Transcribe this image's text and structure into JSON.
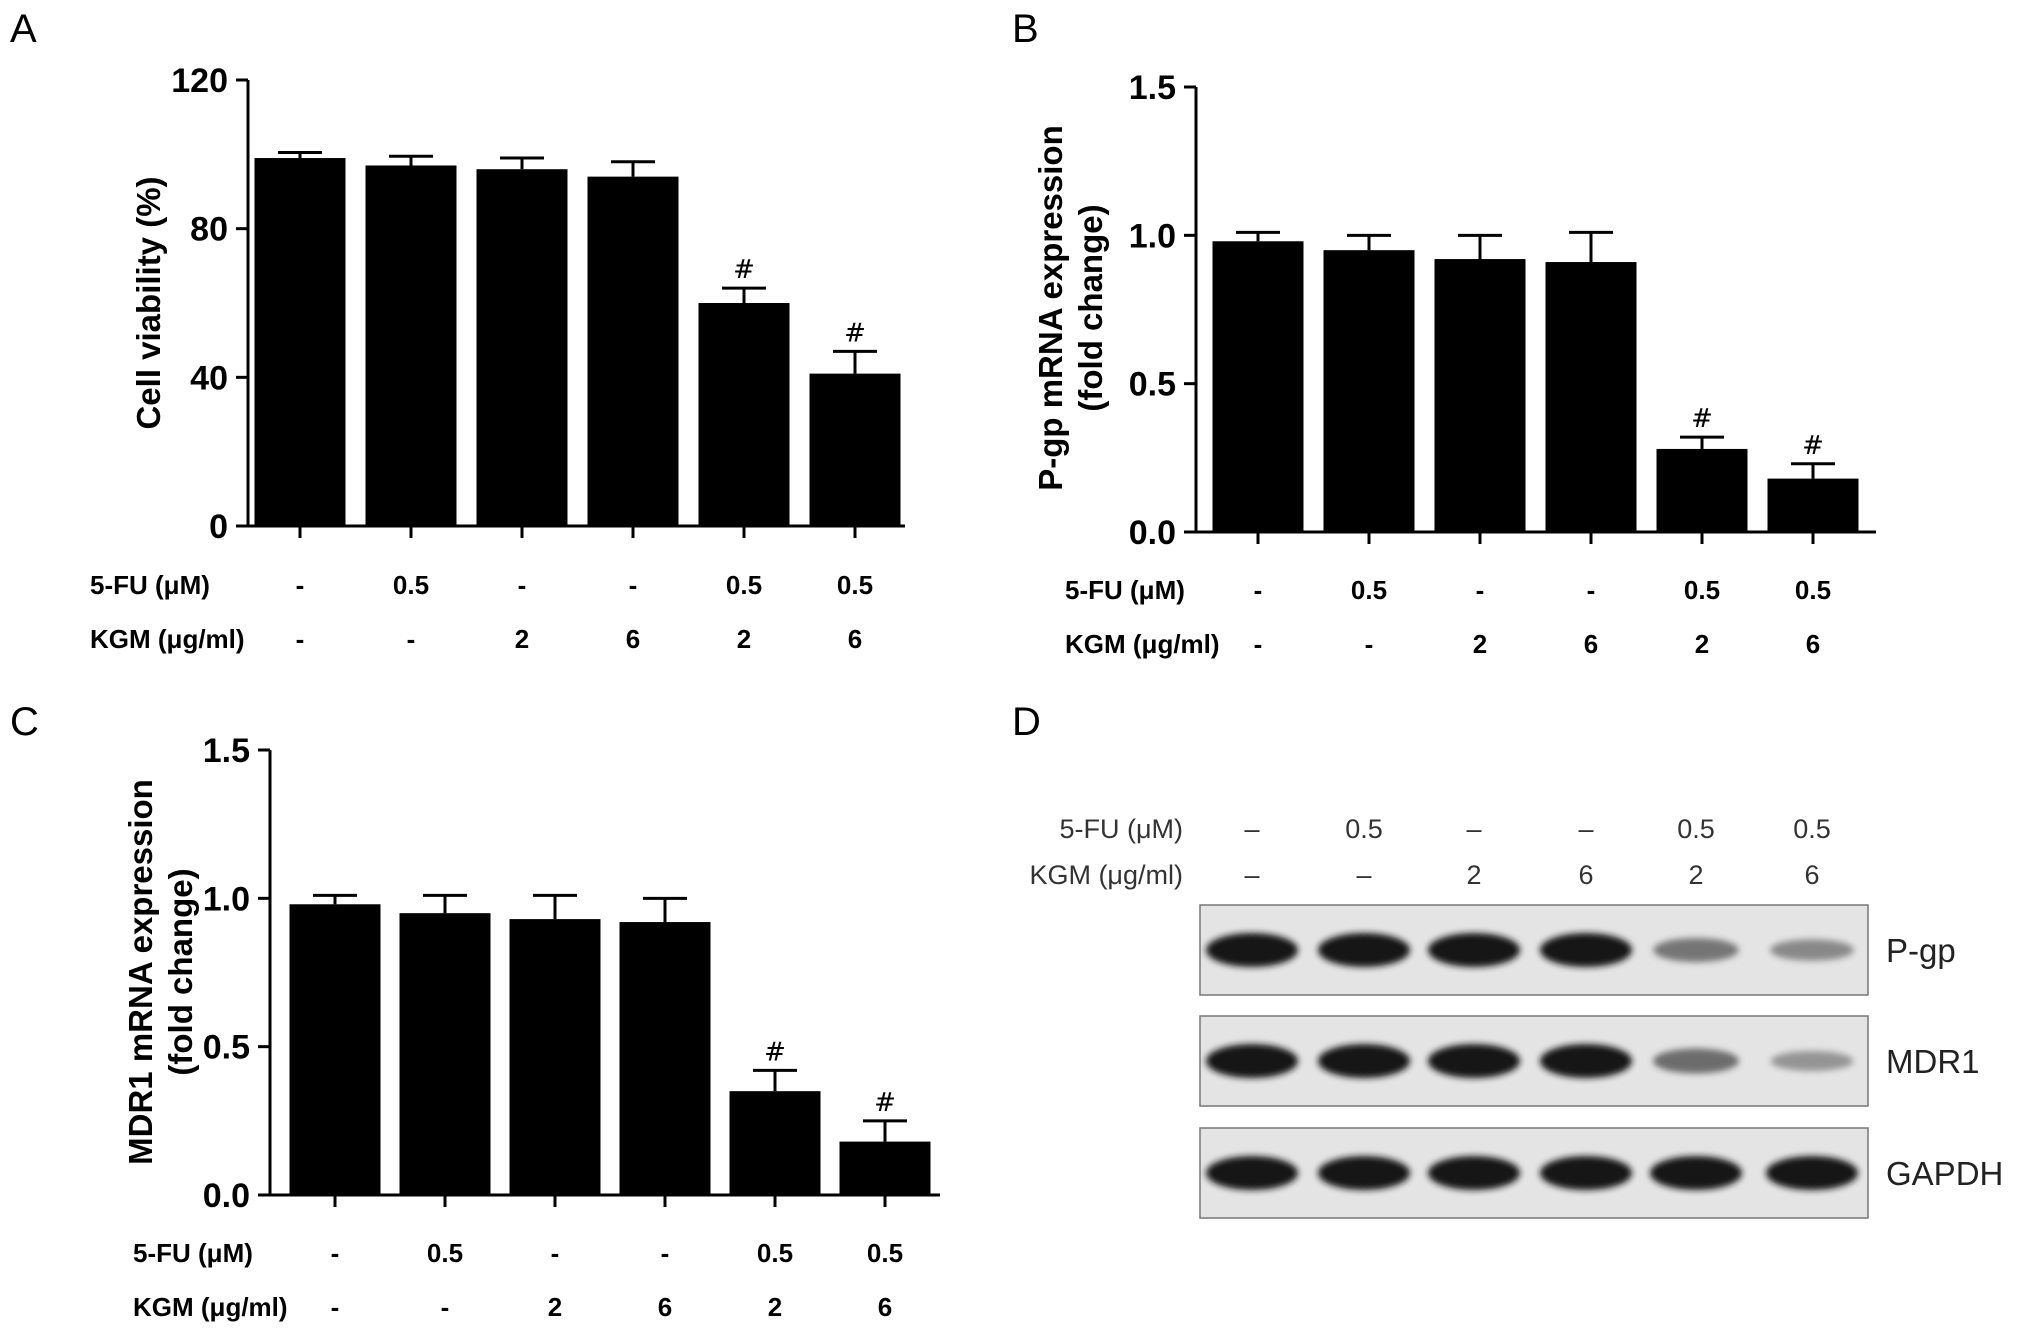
{
  "chart_data": [
    {
      "panel": "A",
      "type": "bar",
      "ylabel": "Cell viability (%)",
      "ylim": [
        0,
        120
      ],
      "yticks": [
        "0",
        "40",
        "80",
        "120"
      ],
      "values": [
        99,
        97,
        96,
        94,
        60,
        41
      ],
      "errors": [
        1.5,
        2.5,
        3,
        4,
        4,
        6
      ],
      "annotations": [
        "",
        "",
        "",
        "",
        "#",
        "#"
      ],
      "conditions": [
        {
          "label": "5-FU (μM)",
          "values": [
            "-",
            "0.5",
            "-",
            "-",
            "0.5",
            "0.5"
          ]
        },
        {
          "label": "KGM (μg/ml)",
          "values": [
            "-",
            "-",
            "2",
            "6",
            "2",
            "6"
          ]
        }
      ]
    },
    {
      "panel": "B",
      "type": "bar",
      "ylabel": "P-gp mRNA expression (fold change)",
      "ylabel_lines": [
        "P-gp mRNA expression",
        "(fold change)"
      ],
      "ylim": [
        0,
        1.5
      ],
      "yticks": [
        "0.0",
        "0.5",
        "1.0",
        "1.5"
      ],
      "values": [
        0.98,
        0.95,
        0.92,
        0.91,
        0.28,
        0.18
      ],
      "errors": [
        0.03,
        0.05,
        0.08,
        0.1,
        0.04,
        0.05
      ],
      "annotations": [
        "",
        "",
        "",
        "",
        "#",
        "#"
      ],
      "conditions": [
        {
          "label": "5-FU (μM)",
          "values": [
            "-",
            "0.5",
            "-",
            "-",
            "0.5",
            "0.5"
          ]
        },
        {
          "label": "KGM (μg/ml)",
          "values": [
            "-",
            "-",
            "2",
            "6",
            "2",
            "6"
          ]
        }
      ]
    },
    {
      "panel": "C",
      "type": "bar",
      "ylabel": "MDR1 mRNA expression (fold change)",
      "ylabel_lines": [
        "MDR1 mRNA expression",
        "(fold change)"
      ],
      "ylim": [
        0,
        1.5
      ],
      "yticks": [
        "0.0",
        "0.5",
        "1.0",
        "1.5"
      ],
      "values": [
        0.98,
        0.95,
        0.93,
        0.92,
        0.35,
        0.18
      ],
      "errors": [
        0.03,
        0.06,
        0.08,
        0.08,
        0.07,
        0.07
      ],
      "annotations": [
        "",
        "",
        "",
        "",
        "#",
        "#"
      ],
      "conditions": [
        {
          "label": "5-FU (μM)",
          "values": [
            "-",
            "0.5",
            "-",
            "-",
            "0.5",
            "0.5"
          ]
        },
        {
          "label": "KGM (μg/ml)",
          "values": [
            "-",
            "-",
            "2",
            "6",
            "2",
            "6"
          ]
        }
      ]
    },
    {
      "panel": "D",
      "type": "western-blot",
      "conditions": [
        {
          "label": "5-FU (μM)",
          "values": [
            "–",
            "0.5",
            "–",
            "–",
            "0.5",
            "0.5"
          ]
        },
        {
          "label": "KGM (μg/ml)",
          "values": [
            "–",
            "–",
            "2",
            "6",
            "2",
            "6"
          ]
        }
      ],
      "blots": [
        {
          "label": "P-gp",
          "intensity": [
            1,
            1,
            1,
            1,
            0.45,
            0.3
          ]
        },
        {
          "label": "MDR1",
          "intensity": [
            1,
            1,
            1,
            1,
            0.5,
            0.22
          ]
        },
        {
          "label": "GAPDH",
          "intensity": [
            1,
            1,
            1,
            1,
            1,
            1
          ]
        }
      ]
    }
  ]
}
